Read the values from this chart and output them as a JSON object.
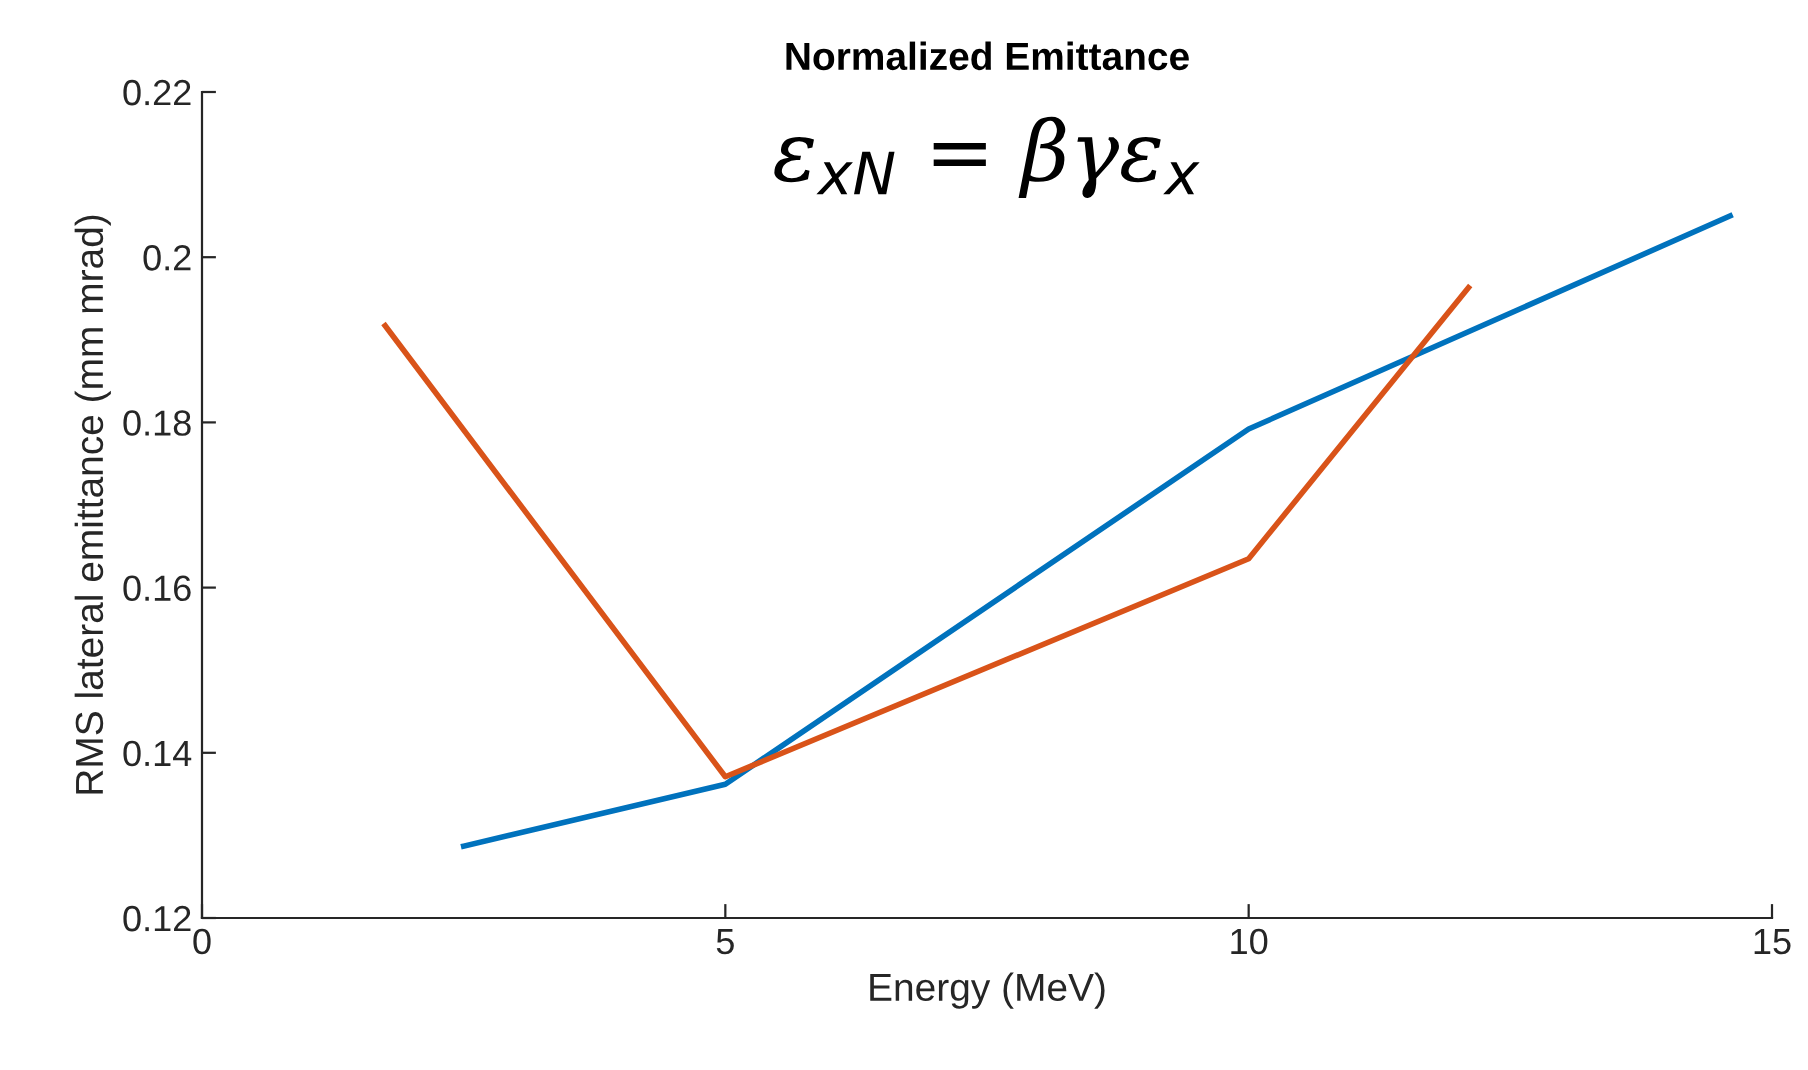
{
  "chart_data": {
    "type": "line",
    "title": "Normalized Emittance",
    "xlabel": "Energy (MeV)",
    "ylabel": "RMS lateral emittance (mm mrad)",
    "annotations": [
      "ε$_{xN}$ = βγε$_{x}$"
    ],
    "series": [
      {
        "color": "#0072bd",
        "x": [
          2.5,
          5,
          10,
          14.6
        ],
        "values": [
          0.1287,
          0.1362,
          0.1792,
          0.205
        ]
      },
      {
        "color": "#d95319",
        "x": [
          1.75,
          5,
          10,
          12.1
        ],
        "values": [
          0.1917,
          0.1371,
          0.1635,
          0.1963
        ]
      }
    ],
    "xlim": [
      0,
      15
    ],
    "xticks": [
      0,
      5,
      10,
      15
    ],
    "ylim": [
      0.12,
      0.22
    ],
    "yticks": [
      0.12,
      0.14,
      0.16,
      0.18,
      0.2,
      0.22
    ],
    "grid": false,
    "legend": false,
    "marker": "none",
    "line_style": "solid"
  }
}
